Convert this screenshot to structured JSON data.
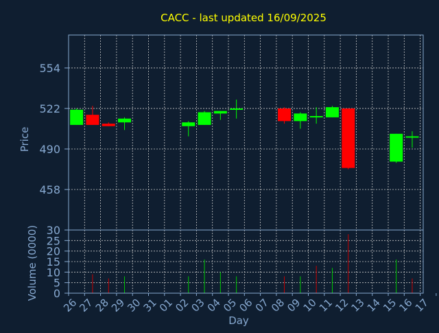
{
  "title": "CACC - last updated 16/09/2025",
  "colors": {
    "background": "#0f1e30",
    "title": "#ffff00",
    "axis_text": "#87a9d1",
    "grid": "#c8c8c8",
    "frame": "#87a9d1",
    "up": "#00ff00",
    "down": "#ff0000",
    "vol_up": "#00c800",
    "vol_down": "#c80000"
  },
  "chart_data": [
    {
      "type": "candlestick",
      "ylabel": "Price",
      "ylim": [
        426,
        580
      ],
      "yticks": [
        "554",
        "522",
        "490",
        "458"
      ],
      "grid": true,
      "x": [
        "26",
        "27",
        "28",
        "29",
        "30",
        "31",
        "01",
        "02",
        "03",
        "04",
        "05",
        "06",
        "07",
        "08",
        "09",
        "10",
        "11",
        "12",
        "13",
        "14",
        "15",
        "16",
        "17"
      ],
      "candles": [
        {
          "x": "26",
          "open": 509,
          "high": 522,
          "low": 509,
          "close": 521
        },
        {
          "x": "27",
          "open": 517,
          "high": 524,
          "low": 509,
          "close": 509
        },
        {
          "x": "28",
          "open": 510,
          "high": 511,
          "low": 508,
          "close": 508
        },
        {
          "x": "29",
          "open": 511,
          "high": 515,
          "low": 505,
          "close": 514
        },
        {
          "x": "02",
          "open": 508,
          "high": 512,
          "low": 500,
          "close": 511
        },
        {
          "x": "03",
          "open": 509,
          "high": 520,
          "low": 509,
          "close": 519
        },
        {
          "x": "04",
          "open": 518,
          "high": 520,
          "low": 513,
          "close": 520
        },
        {
          "x": "05",
          "open": 521,
          "high": 529,
          "low": 514,
          "close": 522
        },
        {
          "x": "08",
          "open": 522,
          "high": 523,
          "low": 510,
          "close": 512
        },
        {
          "x": "09",
          "open": 512,
          "high": 519,
          "low": 506,
          "close": 518
        },
        {
          "x": "10",
          "open": 516,
          "high": 523,
          "low": 510,
          "close": 516
        },
        {
          "x": "11",
          "open": 515,
          "high": 524,
          "low": 515,
          "close": 523
        },
        {
          "x": "12",
          "open": 522,
          "high": 522,
          "low": 474,
          "close": 475
        },
        {
          "x": "15",
          "open": 480,
          "high": 502,
          "low": 479,
          "close": 502
        },
        {
          "x": "16",
          "open": 500,
          "high": 504,
          "low": 491,
          "close": 500
        }
      ]
    },
    {
      "type": "bar",
      "xlabel": "Day",
      "ylabel": "Volume (0000)",
      "ylim": [
        0,
        30
      ],
      "yticks": [
        "30",
        "25",
        "20",
        "15",
        "10",
        "5",
        "0"
      ],
      "x": [
        "26",
        "27",
        "28",
        "29",
        "30",
        "31",
        "01",
        "02",
        "03",
        "04",
        "05",
        "06",
        "07",
        "08",
        "09",
        "10",
        "11",
        "12",
        "13",
        "14",
        "15",
        "16",
        "17"
      ],
      "bars": [
        {
          "x": "26",
          "value": 0,
          "dir": "up"
        },
        {
          "x": "27",
          "value": 9,
          "dir": "down"
        },
        {
          "x": "28",
          "value": 7,
          "dir": "down"
        },
        {
          "x": "29",
          "value": 8,
          "dir": "up"
        },
        {
          "x": "02",
          "value": 8,
          "dir": "up"
        },
        {
          "x": "03",
          "value": 16,
          "dir": "up"
        },
        {
          "x": "04",
          "value": 10,
          "dir": "up"
        },
        {
          "x": "05",
          "value": 8,
          "dir": "up"
        },
        {
          "x": "08",
          "value": 8,
          "dir": "down"
        },
        {
          "x": "09",
          "value": 8,
          "dir": "up"
        },
        {
          "x": "10",
          "value": 13,
          "dir": "down"
        },
        {
          "x": "11",
          "value": 12,
          "dir": "up"
        },
        {
          "x": "12",
          "value": 28,
          "dir": "down"
        },
        {
          "x": "15",
          "value": 16,
          "dir": "up"
        },
        {
          "x": "16",
          "value": 7,
          "dir": "down"
        }
      ]
    }
  ]
}
